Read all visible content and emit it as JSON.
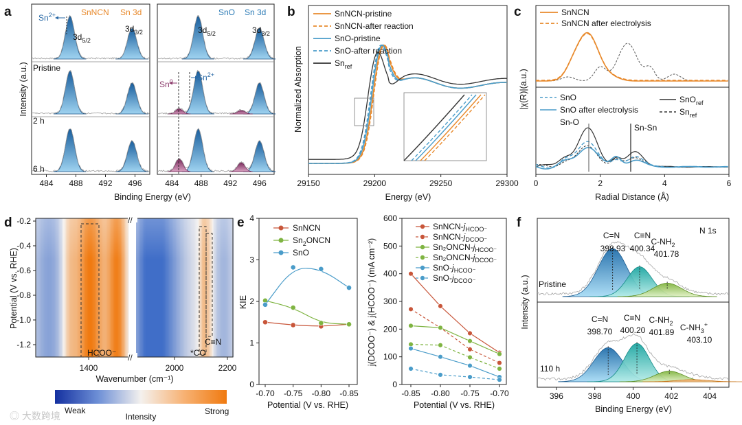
{
  "colors": {
    "orange": "#E8892B",
    "blue": "#4A9CC9",
    "navy": "#1f3f99",
    "dark": "#333333",
    "red": "#C8563A",
    "green": "#7FB442",
    "purple": "#8B3A6B",
    "peak_blue": "#1f72b4",
    "peak_light": "#8ec8ea",
    "teal": "#23b5b0",
    "lime": "#8dc63f"
  },
  "panels": [
    {
      "letter": "a"
    },
    {
      "letter": "b"
    },
    {
      "letter": "c"
    },
    {
      "letter": "d"
    },
    {
      "letter": "e"
    },
    {
      "letter": "f"
    }
  ],
  "chart_data": [
    {
      "id": "a",
      "type": "line",
      "title_left": "SnNCN",
      "title_left2": "Sn 3d",
      "title_right": "SnO",
      "title_right2": "Sn 3d",
      "xlabel": "Binding Energy (eV)",
      "ylabel": "Intensity (a.u.)",
      "xlim": [
        482,
        498
      ],
      "xticks": [
        "484",
        "488",
        "492",
        "496"
      ],
      "rows": [
        "Pristine",
        "2 h",
        "6 h"
      ],
      "peaks_left": {
        "d52": 487.2,
        "d32": 495.6
      },
      "peaks_right": {
        "sn2_d52": 487.6,
        "sn2_d32": 496.0,
        "sn0_d52": 485.0,
        "sn0_d32": 493.5
      },
      "sn0_intensity": [
        0,
        0.12,
        0.3
      ],
      "labels": {
        "d52": "3d",
        "d52_sub": "5/2",
        "d32": "3d",
        "d32_sub": "3/2",
        "sn2": "Sn",
        "sn2_sup": "2+",
        "sn0": "Sn",
        "sn0_sup": "0"
      }
    },
    {
      "id": "b",
      "type": "line",
      "xlabel": "Energy (eV)",
      "ylabel": "Normalized Absorption",
      "xlim": [
        29150,
        29300
      ],
      "xticks": [
        "29150",
        "29200",
        "29250",
        "29300"
      ],
      "series": [
        {
          "name": "SnNCN-pristine",
          "style": "solid",
          "color": "orange",
          "shift": 0
        },
        {
          "name": "SnNCN-after reaction",
          "style": "dashed",
          "color": "orange",
          "shift": 0.5
        },
        {
          "name": "SnO-pristine",
          "style": "solid",
          "color": "blue",
          "shift": -1
        },
        {
          "name": "SnO-after reaction",
          "style": "dashed",
          "color": "blue",
          "shift": -1.8
        },
        {
          "name": "Sn",
          "name_sub": "ref",
          "style": "solid",
          "color": "dark",
          "shift": -3.5
        }
      ]
    },
    {
      "id": "c",
      "type": "line",
      "xlabel": "Radial Distance (Å)",
      "ylabel": "|χ(R)|(a.u.)",
      "xlim": [
        0,
        6
      ],
      "xticks": [
        "0",
        "2",
        "4",
        "6"
      ],
      "legend_top": [
        {
          "name": "SnNCN",
          "style": "solid",
          "color": "orange"
        },
        {
          "name": "SnNCN after electrolysis",
          "style": "dashed",
          "color": "orange"
        }
      ],
      "legend_bottom": [
        {
          "name": "SnO",
          "style": "dashed",
          "color": "blue"
        },
        {
          "name": "SnO after electrolysis",
          "style": "solid",
          "color": "blue"
        },
        {
          "name": "SnO",
          "name_sub": "ref",
          "style": "solid",
          "color": "dark"
        },
        {
          "name": "Sn",
          "name_sub": "ref",
          "style": "dashed",
          "color": "dark"
        }
      ],
      "annotations": [
        "Sn-O",
        "Sn-Sn"
      ],
      "sno_line_x": 1.65,
      "snsn_line_x": 2.95
    },
    {
      "id": "d",
      "type": "heatmap",
      "xlabel": "Wavenumber (cm⁻¹)",
      "ylabel": "Potential (V vs. RHE)",
      "ylim": [
        -1.3,
        -0.2
      ],
      "yticks": [
        "-0.2",
        "-0.4",
        "-0.6",
        "-0.8",
        "-1.0",
        "-1.2"
      ],
      "xticks": [
        "1400",
        "2000",
        "2200"
      ],
      "annotations": [
        "HCOO⁻",
        "*CO",
        "C≡N"
      ],
      "colorbar": {
        "low": "Weak",
        "mid": "Intensity",
        "high": "Strong"
      }
    },
    {
      "id": "e1",
      "type": "line",
      "xlabel": "Potential (V vs. RHE)",
      "ylabel": "KIE",
      "x": [
        -0.7,
        -0.75,
        -0.8,
        -0.85
      ],
      "xticks": [
        "-0.70",
        "-0.75",
        "-0.80",
        "-0.85"
      ],
      "ylim": [
        0,
        4
      ],
      "yticks": [
        "0",
        "1",
        "2",
        "3",
        "4"
      ],
      "series": [
        {
          "name": "SnNCN",
          "color": "red",
          "values": [
            1.5,
            1.43,
            1.4,
            1.45
          ]
        },
        {
          "name": "Sn",
          "name_sub": "2",
          "name_tail": "ONCN",
          "color": "green",
          "values": [
            2.02,
            1.85,
            1.48,
            1.45
          ]
        },
        {
          "name": "SnO",
          "color": "blue",
          "values": [
            1.92,
            2.82,
            2.78,
            2.33
          ]
        }
      ]
    },
    {
      "id": "e2",
      "type": "line",
      "xlabel": "Potential (V vs. RHE)",
      "ylabel": "j(DCOO⁻) & j(HCOO⁻) (mA cm⁻²)",
      "x": [
        -0.85,
        -0.8,
        -0.75,
        -0.7
      ],
      "xticks": [
        "-0.85",
        "-0.80",
        "-0.75",
        "-0.70"
      ],
      "ylim": [
        0,
        600
      ],
      "yticks": [
        "0",
        "100",
        "200",
        "300",
        "400",
        "500",
        "600"
      ],
      "series": [
        {
          "name": "SnNCN-",
          "name_sub": "HCOO⁻",
          "color": "red",
          "style": "solid",
          "values": [
            400,
            283,
            185,
            115
          ]
        },
        {
          "name": "SnNCN-",
          "name_sub": "DCOO⁻",
          "color": "red",
          "style": "dashed",
          "values": [
            272,
            205,
            127,
            78
          ]
        },
        {
          "name": "Sn₂ONCN-",
          "name_sub": "HCOO⁻",
          "color": "green",
          "style": "solid",
          "values": [
            212,
            205,
            157,
            110
          ]
        },
        {
          "name": "Sn₂ONCN-",
          "name_sub": "DCOO⁻",
          "color": "green",
          "style": "dashed",
          "values": [
            145,
            142,
            98,
            57
          ]
        },
        {
          "name": "SnO-",
          "name_sub": "HCOO⁻",
          "color": "blue",
          "style": "solid",
          "values": [
            130,
            100,
            68,
            27
          ]
        },
        {
          "name": "SnO-",
          "name_sub": "DCOO⁻",
          "color": "blue",
          "style": "dashed",
          "values": [
            57,
            35,
            27,
            17
          ]
        }
      ]
    },
    {
      "id": "f",
      "type": "line",
      "title": "N 1s",
      "xlabel": "Binding Energy (eV)",
      "ylabel": "Intensity (a.u.)",
      "xlim": [
        395,
        405
      ],
      "xticks": [
        "396",
        "398",
        "400",
        "402",
        "404"
      ],
      "rows": [
        {
          "label": "Pristine",
          "peaks": [
            {
              "name": "C=N",
              "be": "398.93",
              "x": 398.93,
              "amp": 1.0
            },
            {
              "name": "C≡N",
              "be": "400.34",
              "x": 400.34,
              "amp": 0.62
            },
            {
              "name": "C-NH",
              "name_sub": "2",
              "be": "401.78",
              "x": 401.78,
              "amp": 0.28
            }
          ]
        },
        {
          "label": "110 h",
          "peaks": [
            {
              "name": "C=N",
              "be": "398.70",
              "x": 398.7,
              "amp": 0.8
            },
            {
              "name": "C≡N",
              "be": "400.20",
              "x": 400.2,
              "amp": 0.9
            },
            {
              "name": "C-NH",
              "name_sub": "2",
              "be": "401.89",
              "x": 401.89,
              "amp": 0.25
            },
            {
              "name": "C-NH",
              "name_sub": "3",
              "name_sup": "+",
              "be": "403.10",
              "x": 403.1,
              "amp": 0.05
            }
          ]
        }
      ]
    }
  ],
  "watermark": "大数跨境"
}
